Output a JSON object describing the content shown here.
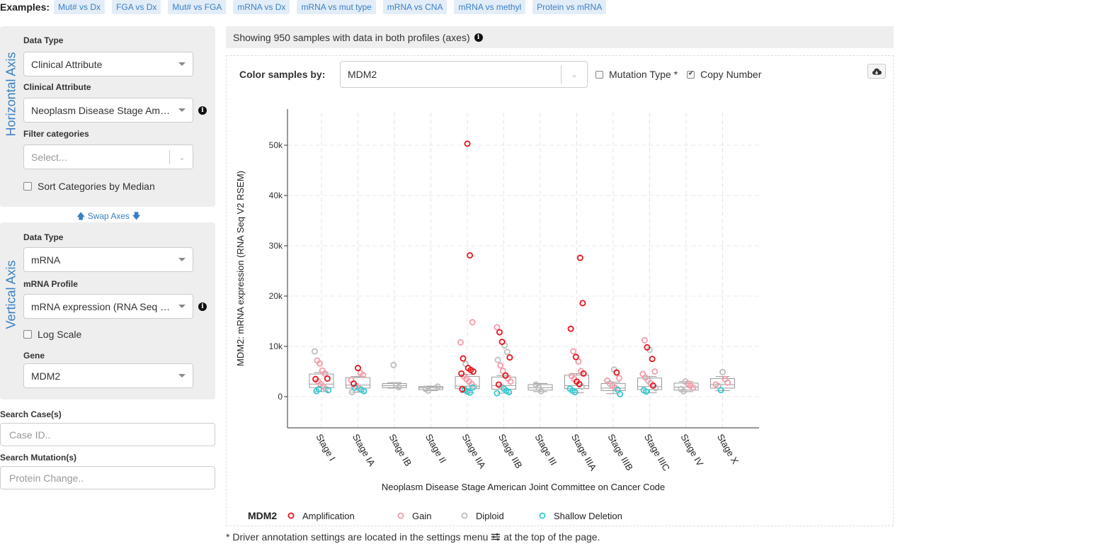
{
  "examples": {
    "label": "Examples:",
    "items": [
      "Mut# vs Dx",
      "FGA vs Dx",
      "Mut# vs FGA",
      "mRNA vs Dx",
      "mRNA vs mut type",
      "mRNA vs CNA",
      "mRNA vs methyl",
      "Protein vs mRNA"
    ]
  },
  "horizontal_axis": {
    "title": "Horizontal Axis",
    "data_type_label": "Data Type",
    "data_type_value": "Clinical Attribute",
    "attribute_label": "Clinical Attribute",
    "attribute_value": "Neoplasm Disease Stage American Joint Committee on Cancer Code",
    "filter_label": "Filter categories",
    "filter_placeholder": "Select...",
    "sort_label": "Sort Categories by Median"
  },
  "swap_axes": "Swap Axes",
  "vertical_axis": {
    "title": "Vertical Axis",
    "data_type_label": "Data Type",
    "data_type_value": "mRNA",
    "profile_label": "mRNA Profile",
    "profile_value": "mRNA expression (RNA Seq V2 RSEM)",
    "log_label": "Log Scale",
    "gene_label": "Gene",
    "gene_value": "MDM2"
  },
  "search": {
    "cases_label": "Search Case(s)",
    "cases_placeholder": "Case ID..",
    "mutations_label": "Search Mutation(s)",
    "mutations_placeholder": "Protein Change.."
  },
  "info_bar": {
    "text": "Showing 950 samples with data in both profiles (axes)"
  },
  "plot_controls": {
    "color_by_label": "Color samples by:",
    "color_by_value": "MDM2",
    "mutation_type_label": "Mutation Type *",
    "mutation_type_checked": false,
    "copy_number_label": "Copy Number",
    "copy_number_checked": true
  },
  "footnote": {
    "before": "* Driver annotation settings are located in the settings menu",
    "after": "at the top of the page."
  },
  "colors": {
    "amplification": "#e8121c",
    "gain": "#f59aa8",
    "diploid": "#bdbdbd",
    "shallow_deletion": "#35c9d1",
    "link": "#3a7fc4"
  },
  "chart_data": {
    "type": "box-scatter",
    "xlabel": "Neoplasm Disease Stage American Joint Committee on Cancer Code",
    "ylabel": "MDM2: mRNA expression (RNA Seq V2 RSEM)",
    "ylim": [
      -6000,
      57000
    ],
    "yticks": [
      0,
      10000,
      20000,
      30000,
      40000,
      50000
    ],
    "ytick_labels": [
      "0",
      "10k",
      "20k",
      "30k",
      "40k",
      "50k"
    ],
    "grid": true,
    "categories": [
      "Stage I",
      "Stage IA",
      "Stage IB",
      "Stage II",
      "Stage IIA",
      "Stage IIB",
      "Stage III",
      "Stage IIIA",
      "Stage IIIB",
      "Stage IIIC",
      "Stage IV",
      "Stage X"
    ],
    "boxes": [
      {
        "q1": 1800,
        "median": 2500,
        "q3": 4500,
        "whisker_low": 1000,
        "whisker_high": 4800
      },
      {
        "q1": 1700,
        "median": 2300,
        "q3": 3800,
        "whisker_low": 900,
        "whisker_high": 4000
      },
      {
        "q1": 1800,
        "median": 2200,
        "q3": 2600,
        "whisker_low": 1700,
        "whisker_high": 2800
      },
      {
        "q1": 1400,
        "median": 1800,
        "q3": 2000,
        "whisker_low": 1200,
        "whisker_high": 2100
      },
      {
        "q1": 1600,
        "median": 2100,
        "q3": 4000,
        "whisker_low": 800,
        "whisker_high": 4400
      },
      {
        "q1": 1500,
        "median": 2200,
        "q3": 3900,
        "whisker_low": 700,
        "whisker_high": 4200
      },
      {
        "q1": 1300,
        "median": 1800,
        "q3": 2400,
        "whisker_low": 1000,
        "whisker_high": 2600
      },
      {
        "q1": 1600,
        "median": 2200,
        "q3": 4300,
        "whisker_low": 800,
        "whisker_high": 4600
      },
      {
        "q1": 1200,
        "median": 1700,
        "q3": 2600,
        "whisker_low": 600,
        "whisker_high": 2900
      },
      {
        "q1": 1400,
        "median": 2000,
        "q3": 3700,
        "whisker_low": 800,
        "whisker_high": 4000
      },
      {
        "q1": 1300,
        "median": 1900,
        "q3": 2700,
        "whisker_low": 1000,
        "whisker_high": 3000
      },
      {
        "q1": 1700,
        "median": 2400,
        "q3": 3600,
        "whisker_low": 1200,
        "whisker_high": 4000
      }
    ],
    "legend": {
      "title": "MDM2",
      "entries": [
        {
          "label": "Amplification",
          "color": "#e8121c"
        },
        {
          "label": "Gain",
          "color": "#f59aa8"
        },
        {
          "label": "Diploid",
          "color": "#bdbdbd"
        },
        {
          "label": "Shallow Deletion",
          "color": "#35c9d1"
        }
      ]
    },
    "points": [
      {
        "cat": 0,
        "y": 9000,
        "c": "diploid"
      },
      {
        "cat": 0,
        "y": 7200,
        "c": "gain"
      },
      {
        "cat": 0,
        "y": 6600,
        "c": "gain"
      },
      {
        "cat": 0,
        "y": 5200,
        "c": "gain"
      },
      {
        "cat": 0,
        "y": 4600,
        "c": "gain"
      },
      {
        "cat": 0,
        "y": 3600,
        "c": "amplification"
      },
      {
        "cat": 0,
        "y": 3500,
        "c": "amplification"
      },
      {
        "cat": 0,
        "y": 3000,
        "c": "gain"
      },
      {
        "cat": 0,
        "y": 2500,
        "c": "gain"
      },
      {
        "cat": 0,
        "y": 2000,
        "c": "gain"
      },
      {
        "cat": 0,
        "y": 1600,
        "c": "diploid"
      },
      {
        "cat": 0,
        "y": 1300,
        "c": "shallow_deletion"
      },
      {
        "cat": 0,
        "y": 1100,
        "c": "shallow_deletion"
      },
      {
        "cat": 0,
        "y": 1500,
        "c": "shallow_deletion"
      },
      {
        "cat": 1,
        "y": 5700,
        "c": "amplification"
      },
      {
        "cat": 1,
        "y": 4700,
        "c": "gain"
      },
      {
        "cat": 1,
        "y": 4300,
        "c": "gain"
      },
      {
        "cat": 1,
        "y": 3300,
        "c": "gain"
      },
      {
        "cat": 1,
        "y": 2600,
        "c": "amplification"
      },
      {
        "cat": 1,
        "y": 2100,
        "c": "gain"
      },
      {
        "cat": 1,
        "y": 1700,
        "c": "diploid"
      },
      {
        "cat": 1,
        "y": 1400,
        "c": "shallow_deletion"
      },
      {
        "cat": 1,
        "y": 1100,
        "c": "shallow_deletion"
      },
      {
        "cat": 1,
        "y": 900,
        "c": "diploid"
      },
      {
        "cat": 1,
        "y": 1800,
        "c": "shallow_deletion"
      },
      {
        "cat": 2,
        "y": 6300,
        "c": "diploid"
      },
      {
        "cat": 2,
        "y": 2300,
        "c": "diploid"
      },
      {
        "cat": 2,
        "y": 1900,
        "c": "diploid"
      },
      {
        "cat": 3,
        "y": 2000,
        "c": "diploid"
      },
      {
        "cat": 3,
        "y": 1500,
        "c": "diploid"
      },
      {
        "cat": 3,
        "y": 1200,
        "c": "diploid"
      },
      {
        "cat": 4,
        "y": 50300,
        "c": "amplification"
      },
      {
        "cat": 4,
        "y": 28100,
        "c": "amplification"
      },
      {
        "cat": 4,
        "y": 14800,
        "c": "gain"
      },
      {
        "cat": 4,
        "y": 10800,
        "c": "gain"
      },
      {
        "cat": 4,
        "y": 7600,
        "c": "amplification"
      },
      {
        "cat": 4,
        "y": 6500,
        "c": "diploid"
      },
      {
        "cat": 4,
        "y": 5700,
        "c": "amplification"
      },
      {
        "cat": 4,
        "y": 5300,
        "c": "amplification"
      },
      {
        "cat": 4,
        "y": 5000,
        "c": "amplification"
      },
      {
        "cat": 4,
        "y": 4600,
        "c": "amplification"
      },
      {
        "cat": 4,
        "y": 4000,
        "c": "gain"
      },
      {
        "cat": 4,
        "y": 3500,
        "c": "gain"
      },
      {
        "cat": 4,
        "y": 3000,
        "c": "gain"
      },
      {
        "cat": 4,
        "y": 2500,
        "c": "gain"
      },
      {
        "cat": 4,
        "y": 2000,
        "c": "diploid"
      },
      {
        "cat": 4,
        "y": 1500,
        "c": "amplification"
      },
      {
        "cat": 4,
        "y": 1400,
        "c": "shallow_deletion"
      },
      {
        "cat": 4,
        "y": 1000,
        "c": "shallow_deletion"
      },
      {
        "cat": 4,
        "y": 800,
        "c": "shallow_deletion"
      },
      {
        "cat": 4,
        "y": 1800,
        "c": "shallow_deletion"
      },
      {
        "cat": 5,
        "y": 13800,
        "c": "gain"
      },
      {
        "cat": 5,
        "y": 12800,
        "c": "amplification"
      },
      {
        "cat": 5,
        "y": 10900,
        "c": "amplification"
      },
      {
        "cat": 5,
        "y": 10200,
        "c": "diploid"
      },
      {
        "cat": 5,
        "y": 8900,
        "c": "diploid"
      },
      {
        "cat": 5,
        "y": 7800,
        "c": "amplification"
      },
      {
        "cat": 5,
        "y": 7300,
        "c": "diploid"
      },
      {
        "cat": 5,
        "y": 6200,
        "c": "gain"
      },
      {
        "cat": 5,
        "y": 5100,
        "c": "gain"
      },
      {
        "cat": 5,
        "y": 4200,
        "c": "amplification"
      },
      {
        "cat": 5,
        "y": 3600,
        "c": "gain"
      },
      {
        "cat": 5,
        "y": 3000,
        "c": "gain"
      },
      {
        "cat": 5,
        "y": 2400,
        "c": "amplification"
      },
      {
        "cat": 5,
        "y": 2000,
        "c": "diploid"
      },
      {
        "cat": 5,
        "y": 1600,
        "c": "shallow_deletion"
      },
      {
        "cat": 5,
        "y": 1200,
        "c": "shallow_deletion"
      },
      {
        "cat": 5,
        "y": 900,
        "c": "shallow_deletion"
      },
      {
        "cat": 5,
        "y": 700,
        "c": "shallow_deletion"
      },
      {
        "cat": 6,
        "y": 2400,
        "c": "diploid"
      },
      {
        "cat": 6,
        "y": 1800,
        "c": "diploid"
      },
      {
        "cat": 6,
        "y": 1100,
        "c": "diploid"
      },
      {
        "cat": 7,
        "y": 27600,
        "c": "amplification"
      },
      {
        "cat": 7,
        "y": 18600,
        "c": "amplification"
      },
      {
        "cat": 7,
        "y": 13500,
        "c": "amplification"
      },
      {
        "cat": 7,
        "y": 9000,
        "c": "gain"
      },
      {
        "cat": 7,
        "y": 7900,
        "c": "amplification"
      },
      {
        "cat": 7,
        "y": 7000,
        "c": "gain"
      },
      {
        "cat": 7,
        "y": 5100,
        "c": "gain"
      },
      {
        "cat": 7,
        "y": 4600,
        "c": "amplification"
      },
      {
        "cat": 7,
        "y": 4100,
        "c": "gain"
      },
      {
        "cat": 7,
        "y": 3500,
        "c": "gain"
      },
      {
        "cat": 7,
        "y": 3000,
        "c": "amplification"
      },
      {
        "cat": 7,
        "y": 2500,
        "c": "amplification"
      },
      {
        "cat": 7,
        "y": 2000,
        "c": "diploid"
      },
      {
        "cat": 7,
        "y": 1600,
        "c": "shallow_deletion"
      },
      {
        "cat": 7,
        "y": 1200,
        "c": "shallow_deletion"
      },
      {
        "cat": 7,
        "y": 900,
        "c": "shallow_deletion"
      },
      {
        "cat": 8,
        "y": 5400,
        "c": "diploid"
      },
      {
        "cat": 8,
        "y": 4800,
        "c": "amplification"
      },
      {
        "cat": 8,
        "y": 3700,
        "c": "gain"
      },
      {
        "cat": 8,
        "y": 3200,
        "c": "gain"
      },
      {
        "cat": 8,
        "y": 2600,
        "c": "diploid"
      },
      {
        "cat": 8,
        "y": 2200,
        "c": "gain"
      },
      {
        "cat": 8,
        "y": 1800,
        "c": "gain"
      },
      {
        "cat": 8,
        "y": 1400,
        "c": "shallow_deletion"
      },
      {
        "cat": 8,
        "y": 500,
        "c": "shallow_deletion"
      },
      {
        "cat": 9,
        "y": 11200,
        "c": "gain"
      },
      {
        "cat": 9,
        "y": 9800,
        "c": "amplification"
      },
      {
        "cat": 9,
        "y": 9300,
        "c": "diploid"
      },
      {
        "cat": 9,
        "y": 7500,
        "c": "amplification"
      },
      {
        "cat": 9,
        "y": 5000,
        "c": "gain"
      },
      {
        "cat": 9,
        "y": 4500,
        "c": "gain"
      },
      {
        "cat": 9,
        "y": 3800,
        "c": "gain"
      },
      {
        "cat": 9,
        "y": 3200,
        "c": "diploid"
      },
      {
        "cat": 9,
        "y": 2700,
        "c": "gain"
      },
      {
        "cat": 9,
        "y": 2200,
        "c": "amplification"
      },
      {
        "cat": 9,
        "y": 1700,
        "c": "diploid"
      },
      {
        "cat": 9,
        "y": 1300,
        "c": "shallow_deletion"
      },
      {
        "cat": 9,
        "y": 1000,
        "c": "shallow_deletion"
      },
      {
        "cat": 10,
        "y": 3000,
        "c": "diploid"
      },
      {
        "cat": 10,
        "y": 2600,
        "c": "gain"
      },
      {
        "cat": 10,
        "y": 2200,
        "c": "gain"
      },
      {
        "cat": 10,
        "y": 1800,
        "c": "gain"
      },
      {
        "cat": 10,
        "y": 1500,
        "c": "diploid"
      },
      {
        "cat": 10,
        "y": 1100,
        "c": "diploid"
      },
      {
        "cat": 11,
        "y": 4900,
        "c": "diploid"
      },
      {
        "cat": 11,
        "y": 3500,
        "c": "gain"
      },
      {
        "cat": 11,
        "y": 2800,
        "c": "gain"
      },
      {
        "cat": 11,
        "y": 2400,
        "c": "gain"
      },
      {
        "cat": 11,
        "y": 2100,
        "c": "diploid"
      },
      {
        "cat": 11,
        "y": 1300,
        "c": "shallow_deletion"
      }
    ]
  }
}
